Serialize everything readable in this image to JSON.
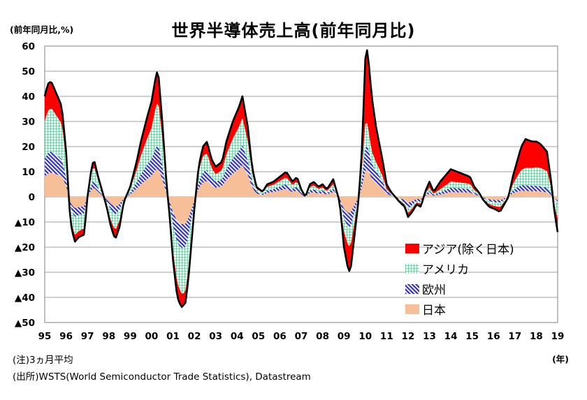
{
  "title": "世界半導体売上高(前年同月比)",
  "note": "(注)3ヵ月平均",
  "source": "(出所)WSTS(World Semiconductor Trade Statistics), Datastream",
  "colors": {
    "asia": "#ff0000",
    "america": "#22aa66",
    "europe": "#3333bb",
    "japan": "#f7bf97",
    "total_line": "#000000",
    "grid": "#808080"
  },
  "chart_data": {
    "type": "area",
    "title": "世界半導体売上高(前年同月比)",
    "ylabel": "(前年同月比,%)",
    "xlabel": "(年)",
    "ylim": [
      -50,
      60
    ],
    "yticks": [
      60,
      50,
      40,
      30,
      20,
      10,
      0,
      -10,
      -20,
      -30,
      -40,
      -50
    ],
    "ytick_labels": [
      "60",
      "50",
      "40",
      "30",
      "20",
      "10",
      "0",
      "▲10",
      "▲20",
      "▲30",
      "▲40",
      "▲50"
    ],
    "xticks": [
      "95",
      "96",
      "97",
      "98",
      "99",
      "00",
      "01",
      "02",
      "03",
      "04",
      "05",
      "06",
      "07",
      "08",
      "09",
      "10",
      "11",
      "12",
      "13",
      "14",
      "15",
      "16",
      "17",
      "18",
      "19"
    ],
    "xlim": [
      1995.0,
      2019.0
    ],
    "stacked": true,
    "grid": true,
    "legend_position": "bottom-right",
    "total_keypoints": [
      [
        1995.0,
        40
      ],
      [
        1995.15,
        45
      ],
      [
        1995.3,
        46
      ],
      [
        1995.5,
        42
      ],
      [
        1995.8,
        36
      ],
      [
        1996.0,
        18
      ],
      [
        1996.2,
        -10
      ],
      [
        1996.4,
        -18
      ],
      [
        1996.6,
        -16
      ],
      [
        1996.85,
        -15
      ],
      [
        1997.0,
        0
      ],
      [
        1997.2,
        12
      ],
      [
        1997.3,
        15
      ],
      [
        1997.5,
        8
      ],
      [
        1997.7,
        2
      ],
      [
        1997.9,
        -4
      ],
      [
        1998.1,
        -12
      ],
      [
        1998.3,
        -17
      ],
      [
        1998.5,
        -12
      ],
      [
        1998.7,
        -2
      ],
      [
        1999.0,
        4
      ],
      [
        1999.3,
        14
      ],
      [
        1999.5,
        22
      ],
      [
        1999.8,
        32
      ],
      [
        2000.0,
        38
      ],
      [
        2000.2,
        48
      ],
      [
        2000.3,
        51
      ],
      [
        2000.5,
        30
      ],
      [
        2000.7,
        5
      ],
      [
        2000.85,
        -8
      ],
      [
        2001.0,
        -25
      ],
      [
        2001.2,
        -40
      ],
      [
        2001.4,
        -44
      ],
      [
        2001.6,
        -42
      ],
      [
        2001.75,
        -30
      ],
      [
        2002.0,
        -5
      ],
      [
        2002.2,
        12
      ],
      [
        2002.4,
        20
      ],
      [
        2002.6,
        22
      ],
      [
        2002.8,
        15
      ],
      [
        2003.0,
        12
      ],
      [
        2003.3,
        14
      ],
      [
        2003.5,
        22
      ],
      [
        2003.8,
        30
      ],
      [
        2004.1,
        36
      ],
      [
        2004.25,
        40
      ],
      [
        2004.5,
        28
      ],
      [
        2004.7,
        12
      ],
      [
        2004.9,
        4
      ],
      [
        2005.2,
        2
      ],
      [
        2005.4,
        5
      ],
      [
        2005.7,
        6
      ],
      [
        2006.0,
        8
      ],
      [
        2006.3,
        10
      ],
      [
        2006.6,
        6
      ],
      [
        2006.8,
        8
      ],
      [
        2007.0,
        3
      ],
      [
        2007.2,
        0
      ],
      [
        2007.4,
        5
      ],
      [
        2007.6,
        6
      ],
      [
        2007.8,
        4
      ],
      [
        2008.0,
        5
      ],
      [
        2008.2,
        3
      ],
      [
        2008.5,
        7
      ],
      [
        2008.8,
        -2
      ],
      [
        2009.0,
        -20
      ],
      [
        2009.2,
        -29
      ],
      [
        2009.3,
        -30
      ],
      [
        2009.5,
        -15
      ],
      [
        2009.7,
        0
      ],
      [
        2009.85,
        20
      ],
      [
        2010.0,
        55
      ],
      [
        2010.1,
        59
      ],
      [
        2010.3,
        40
      ],
      [
        2010.5,
        28
      ],
      [
        2010.8,
        15
      ],
      [
        2011.0,
        5
      ],
      [
        2011.2,
        2
      ],
      [
        2011.4,
        0
      ],
      [
        2011.6,
        -2
      ],
      [
        2011.85,
        -4
      ],
      [
        2012.0,
        -8
      ],
      [
        2012.2,
        -6
      ],
      [
        2012.4,
        -3
      ],
      [
        2012.6,
        -4
      ],
      [
        2012.8,
        2
      ],
      [
        2013.0,
        6
      ],
      [
        2013.2,
        2
      ],
      [
        2013.5,
        6
      ],
      [
        2013.8,
        9
      ],
      [
        2014.0,
        11
      ],
      [
        2014.3,
        10
      ],
      [
        2014.6,
        9
      ],
      [
        2014.9,
        8
      ],
      [
        2015.1,
        4
      ],
      [
        2015.3,
        2
      ],
      [
        2015.5,
        -1
      ],
      [
        2015.8,
        -4
      ],
      [
        2016.1,
        -5
      ],
      [
        2016.3,
        -6
      ],
      [
        2016.5,
        -3
      ],
      [
        2016.7,
        0
      ],
      [
        2016.9,
        8
      ],
      [
        2017.1,
        14
      ],
      [
        2017.3,
        20
      ],
      [
        2017.5,
        23
      ],
      [
        2017.8,
        22
      ],
      [
        2018.0,
        22
      ],
      [
        2018.2,
        21
      ],
      [
        2018.5,
        18
      ],
      [
        2018.7,
        6
      ],
      [
        2018.85,
        -6
      ],
      [
        2019.0,
        -14
      ]
    ],
    "share_keypoints": {
      "japan": [
        [
          1995,
          0.2
        ],
        [
          1996.5,
          0.25
        ],
        [
          2000,
          0.22
        ],
        [
          2001.5,
          0.25
        ],
        [
          2003,
          0.3
        ],
        [
          2005,
          0.32
        ],
        [
          2008,
          0.3
        ],
        [
          2009.5,
          0.2
        ],
        [
          2010.3,
          0.18
        ],
        [
          2012,
          0.3
        ],
        [
          2013.5,
          0.15
        ],
        [
          2016,
          0.25
        ],
        [
          2017.5,
          0.1
        ],
        [
          2019,
          0.1
        ]
      ],
      "europe": [
        [
          1995,
          0.18
        ],
        [
          1996.5,
          0.2
        ],
        [
          2000,
          0.18
        ],
        [
          2001.5,
          0.22
        ],
        [
          2003,
          0.2
        ],
        [
          2005,
          0.2
        ],
        [
          2008,
          0.2
        ],
        [
          2009.5,
          0.2
        ],
        [
          2010.3,
          0.15
        ],
        [
          2012,
          0.3
        ],
        [
          2013.5,
          0.15
        ],
        [
          2016,
          0.2
        ],
        [
          2017.5,
          0.1
        ],
        [
          2019,
          0.1
        ]
      ],
      "america": [
        [
          1995,
          0.37
        ],
        [
          1996.5,
          0.4
        ],
        [
          2000,
          0.32
        ],
        [
          2001.5,
          0.42
        ],
        [
          2003,
          0.25
        ],
        [
          2005,
          0.28
        ],
        [
          2008,
          0.25
        ],
        [
          2009.5,
          0.25
        ],
        [
          2010.3,
          0.12
        ],
        [
          2012,
          0.2
        ],
        [
          2013.5,
          0.2
        ],
        [
          2016,
          0.3
        ],
        [
          2017.5,
          0.3
        ],
        [
          2019,
          0.4
        ]
      ]
    },
    "series": [
      {
        "name": "アジア(除く日本)",
        "color": "#ff0000",
        "pattern": "solid"
      },
      {
        "name": "アメリカ",
        "color": "#22aa66",
        "pattern": "grid"
      },
      {
        "name": "欧州",
        "color": "#3333bb",
        "pattern": "diagonal"
      },
      {
        "name": "日本",
        "color": "#f7bf97",
        "pattern": "solid"
      }
    ]
  }
}
